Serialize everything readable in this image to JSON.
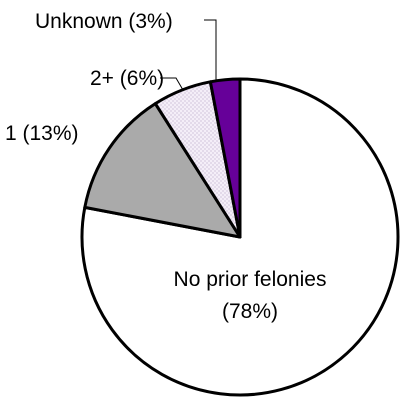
{
  "chart_data": {
    "type": "pie",
    "start_angle_deg": 0,
    "direction": "clockwise",
    "slices": [
      {
        "label_lines": [
          "No prior felonies",
          "(78%)"
        ],
        "value": 78,
        "color": "#ffffff",
        "pattern": "none"
      },
      {
        "label_lines": [
          "1 (13%)"
        ],
        "value": 13,
        "color": "#aaaaaa",
        "pattern": "none"
      },
      {
        "label_lines": [
          "2+ (6%)"
        ],
        "value": 6,
        "color": "#f2ecf6",
        "pattern": "dots"
      },
      {
        "label_lines": [
          "Unknown (3%)"
        ],
        "value": 3,
        "color": "#660099",
        "pattern": "none"
      }
    ]
  }
}
